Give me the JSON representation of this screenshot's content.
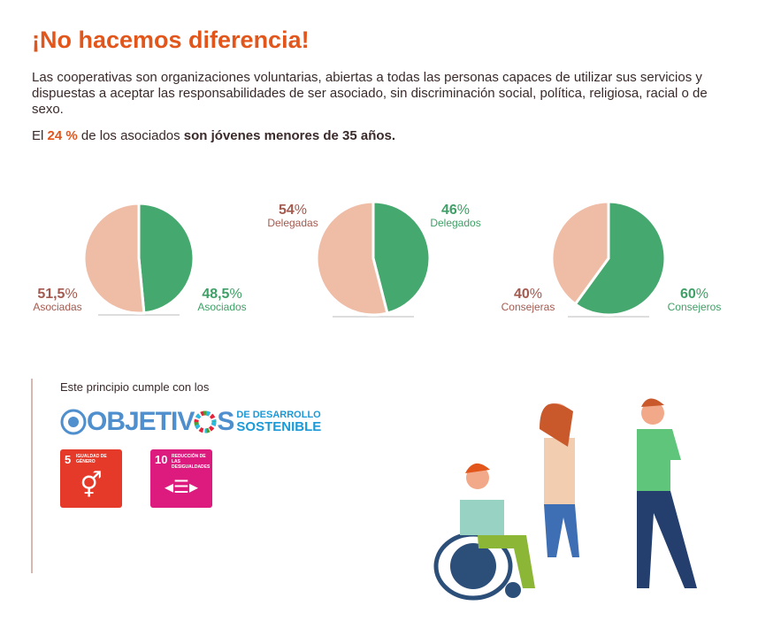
{
  "title": "¡No hacemos diferencia!",
  "intro": "Las cooperativas son organizaciones voluntarias, abiertas a todas las personas capaces de utilizar sus servicios y dispuestas a aceptar las responsabilidades de ser asociado, sin discriminación social, política, religiosa, racial o de sexo.",
  "stat": {
    "prefix": "El ",
    "value": "24 %",
    "middle": " de los asociados ",
    "bold": "son jóvenes menores de 35 años."
  },
  "colors": {
    "female": "#efbda6",
    "male": "#45a86e",
    "title": "#e2561c"
  },
  "chart_data": [
    {
      "type": "pie",
      "title": "Asociados",
      "slices": [
        {
          "label": "Asociadas",
          "value": 51.5,
          "display": "51,5"
        },
        {
          "label": "Asociados",
          "value": 48.5,
          "display": "48,5"
        }
      ]
    },
    {
      "type": "pie",
      "title": "Delegados",
      "slices": [
        {
          "label": "Delegadas",
          "value": 54,
          "display": "54"
        },
        {
          "label": "Delegados",
          "value": 46,
          "display": "46"
        }
      ]
    },
    {
      "type": "pie",
      "title": "Consejeros",
      "slices": [
        {
          "label": "Consejeras",
          "value": 40,
          "display": "40"
        },
        {
          "label": "Consejeros",
          "value": 60,
          "display": "60"
        }
      ]
    }
  ],
  "pct": "%",
  "cumple": "Este principio cumple con los",
  "ods": {
    "big1": "OBJETIV",
    "big2": "S",
    "small1": "DE DESARROLLO",
    "small2": "SOSTENIBLE"
  },
  "goals": [
    {
      "number": "5",
      "title": "IGUALDAD DE GÉNERO",
      "color": "#e5392a"
    },
    {
      "number": "10",
      "title": "REDUCCIÓN DE LAS DESIGUALDADES",
      "color": "#dd1a7e"
    }
  ]
}
